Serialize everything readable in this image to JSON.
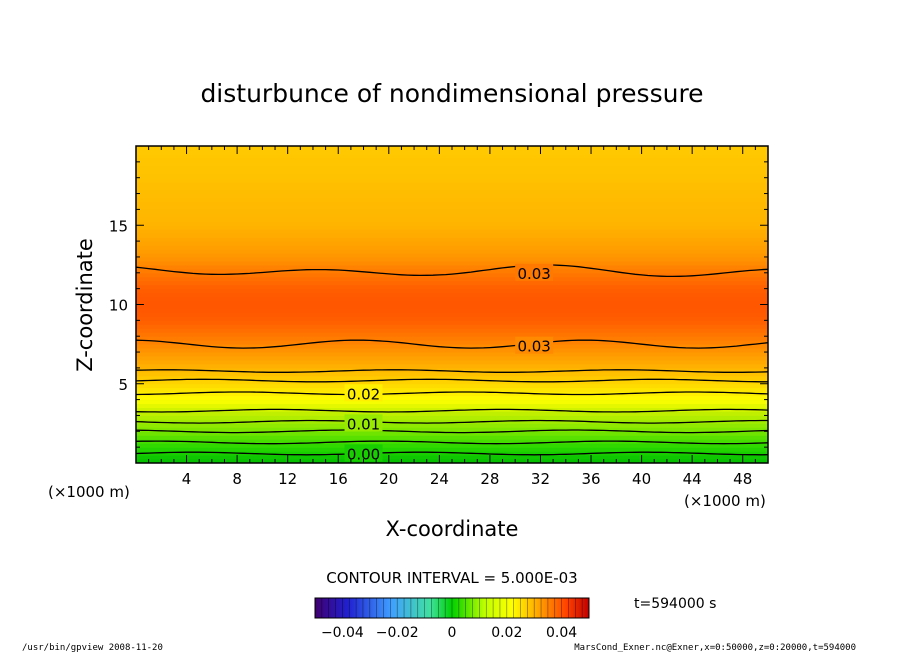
{
  "chart_data": {
    "type": "heatmap",
    "title": "disturbunce of nondimensional pressure",
    "xlabel": "X-coordinate",
    "ylabel": "Z-coordinate",
    "x_unit": "(×1000 m)",
    "z_unit": "(×1000 m)",
    "xlim": [
      0,
      50
    ],
    "ylim": [
      0,
      20
    ],
    "x_ticks": [
      "4",
      "8",
      "12",
      "16",
      "20",
      "24",
      "28",
      "32",
      "36",
      "40",
      "44",
      "48"
    ],
    "y_ticks": [
      "5",
      "10",
      "15"
    ],
    "contour_labels": [
      {
        "text": "0.03",
        "x": 31.5,
        "z": 12.0
      },
      {
        "text": "0.03",
        "x": 31.5,
        "z": 7.4
      },
      {
        "text": "0.02",
        "x": 18.0,
        "z": 4.4
      },
      {
        "text": "0.01",
        "x": 18.0,
        "z": 2.5
      },
      {
        "text": "0.00",
        "x": 18.0,
        "z": 0.6
      }
    ],
    "contour_interval_text": "CONTOUR INTERVAL = 5.000E-03",
    "colorbar": {
      "range": [
        -0.05,
        0.05
      ],
      "ticks": [
        "-0.04",
        "-0.02",
        "0",
        "0.02",
        "0.04"
      ]
    },
    "time_label": "t=594000 s",
    "profile": {
      "z": [
        0,
        1,
        2,
        3,
        4,
        5,
        6,
        7,
        8,
        9,
        10,
        11,
        12,
        13,
        14,
        15,
        16,
        17,
        18,
        19,
        20
      ],
      "value": [
        0.0,
        0.005,
        0.01,
        0.014,
        0.018,
        0.022,
        0.026,
        0.029,
        0.031,
        0.0325,
        0.033,
        0.0325,
        0.031,
        0.029,
        0.0275,
        0.026,
        0.0255,
        0.025,
        0.0245,
        0.024,
        0.0235
      ]
    }
  },
  "footer": {
    "left": "/usr/bin/gpview  2008-11-20",
    "right": "MarsCond_Exner.nc@Exner,x=0:50000,z=0:20000,t=594000"
  },
  "colors": {
    "frame": "#000000",
    "low": "#00aa00",
    "mid": "#ffff00",
    "high": "#ff5500"
  }
}
